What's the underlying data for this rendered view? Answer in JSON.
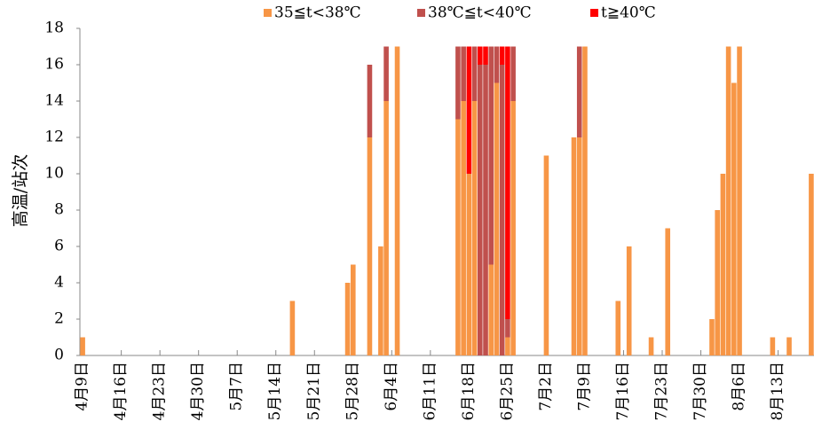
{
  "chart_data": {
    "type": "stacked-bar",
    "y_label": "高温/站次",
    "legend": "top",
    "categories": [
      "4月9日",
      null,
      null,
      null,
      null,
      null,
      null,
      "4月16日",
      null,
      null,
      null,
      null,
      null,
      null,
      "4月23日",
      null,
      null,
      null,
      null,
      null,
      null,
      "4月30日",
      null,
      null,
      null,
      null,
      null,
      null,
      "5月7日",
      null,
      null,
      null,
      null,
      null,
      null,
      "5月14日",
      null,
      null,
      null,
      null,
      null,
      null,
      "5月21日",
      null,
      null,
      null,
      null,
      null,
      null,
      "5月28日",
      null,
      null,
      null,
      null,
      null,
      null,
      "6月4日",
      null,
      null,
      null,
      null,
      null,
      null,
      "6月11日",
      null,
      null,
      null,
      null,
      null,
      null,
      "6月18日",
      null,
      null,
      null,
      null,
      null,
      null,
      "6月25日",
      null,
      null,
      null,
      null,
      null,
      null,
      "7月2日",
      null,
      null,
      null,
      null,
      null,
      null,
      "7月9日",
      null,
      null,
      null,
      null,
      null,
      null,
      "7月16日",
      null,
      null,
      null,
      null,
      null,
      null,
      "7月23日",
      null,
      null,
      null,
      null,
      null,
      null,
      "7月30日",
      null,
      null,
      null,
      null,
      null,
      null,
      "8月6日",
      null,
      null,
      null,
      null,
      null,
      null,
      "8月13日",
      null,
      null,
      null,
      null,
      null,
      null
    ],
    "series": [
      {
        "name": "35≦t<38℃",
        "color": "#F79646",
        "values": [
          1,
          0,
          0,
          0,
          0,
          0,
          0,
          0,
          0,
          0,
          0,
          0,
          0,
          0,
          0,
          0,
          0,
          0,
          0,
          0,
          0,
          0,
          0,
          0,
          0,
          0,
          0,
          0,
          0,
          0,
          0,
          0,
          0,
          0,
          0,
          0,
          0,
          0,
          3,
          0,
          0,
          0,
          0,
          0,
          0,
          0,
          0,
          0,
          4,
          5,
          0,
          0,
          12,
          0,
          6,
          14,
          0,
          17,
          0,
          0,
          0,
          0,
          0,
          0,
          0,
          0,
          0,
          0,
          13,
          14,
          10,
          14,
          0,
          0,
          5,
          15,
          0,
          1,
          14,
          0,
          0,
          0,
          0,
          0,
          11,
          0,
          0,
          0,
          0,
          12,
          12,
          17,
          0,
          0,
          0,
          0,
          0,
          3,
          0,
          6,
          0,
          0,
          0,
          1,
          0,
          0,
          7,
          0,
          0,
          0,
          0,
          0,
          0,
          0,
          2,
          8,
          10,
          17,
          15,
          17,
          0,
          0,
          0,
          0,
          0,
          1,
          0,
          0,
          1,
          0,
          0,
          0,
          10
        ]
      },
      {
        "name": "38℃≦t<40℃",
        "color": "#C0504D",
        "values": [
          0,
          0,
          0,
          0,
          0,
          0,
          0,
          0,
          0,
          0,
          0,
          0,
          0,
          0,
          0,
          0,
          0,
          0,
          0,
          0,
          0,
          0,
          0,
          0,
          0,
          0,
          0,
          0,
          0,
          0,
          0,
          0,
          0,
          0,
          0,
          0,
          0,
          0,
          0,
          0,
          0,
          0,
          0,
          0,
          0,
          0,
          0,
          0,
          0,
          0,
          0,
          0,
          4,
          0,
          0,
          3,
          0,
          0,
          0,
          0,
          0,
          0,
          0,
          0,
          0,
          0,
          0,
          0,
          4,
          3,
          0,
          3,
          16,
          16,
          12,
          2,
          16,
          1,
          3,
          0,
          0,
          0,
          0,
          0,
          0,
          0,
          0,
          0,
          0,
          0,
          5,
          0,
          0,
          0,
          0,
          0,
          0,
          0,
          0,
          0,
          0,
          0,
          0,
          0,
          0,
          0,
          0,
          0,
          0,
          0,
          0,
          0,
          0,
          0,
          0,
          0,
          0,
          0,
          0,
          0,
          0,
          0,
          0,
          0,
          0,
          0,
          0,
          0,
          0,
          0,
          0,
          0,
          0
        ]
      },
      {
        "name": "t≧40℃",
        "color": "#FF0000",
        "values": [
          0,
          0,
          0,
          0,
          0,
          0,
          0,
          0,
          0,
          0,
          0,
          0,
          0,
          0,
          0,
          0,
          0,
          0,
          0,
          0,
          0,
          0,
          0,
          0,
          0,
          0,
          0,
          0,
          0,
          0,
          0,
          0,
          0,
          0,
          0,
          0,
          0,
          0,
          0,
          0,
          0,
          0,
          0,
          0,
          0,
          0,
          0,
          0,
          0,
          0,
          0,
          0,
          0,
          0,
          0,
          0,
          0,
          0,
          0,
          0,
          0,
          0,
          0,
          0,
          0,
          0,
          0,
          0,
          0,
          0,
          7,
          0,
          1,
          1,
          0,
          0,
          1,
          15,
          0,
          0,
          0,
          0,
          0,
          0,
          0,
          0,
          0,
          0,
          0,
          0,
          0,
          0,
          0,
          0,
          0,
          0,
          0,
          0,
          0,
          0,
          0,
          0,
          0,
          0,
          0,
          0,
          0,
          0,
          0,
          0,
          0,
          0,
          0,
          0,
          0,
          0,
          0,
          0,
          0,
          0,
          0,
          0,
          0,
          0,
          0,
          0,
          0,
          0,
          0,
          0,
          0,
          0,
          0
        ]
      }
    ],
    "ylim": [
      0,
      18
    ],
    "yticks": [
      0,
      2,
      4,
      6,
      8,
      10,
      12,
      14,
      16,
      18
    ],
    "grid": false
  }
}
